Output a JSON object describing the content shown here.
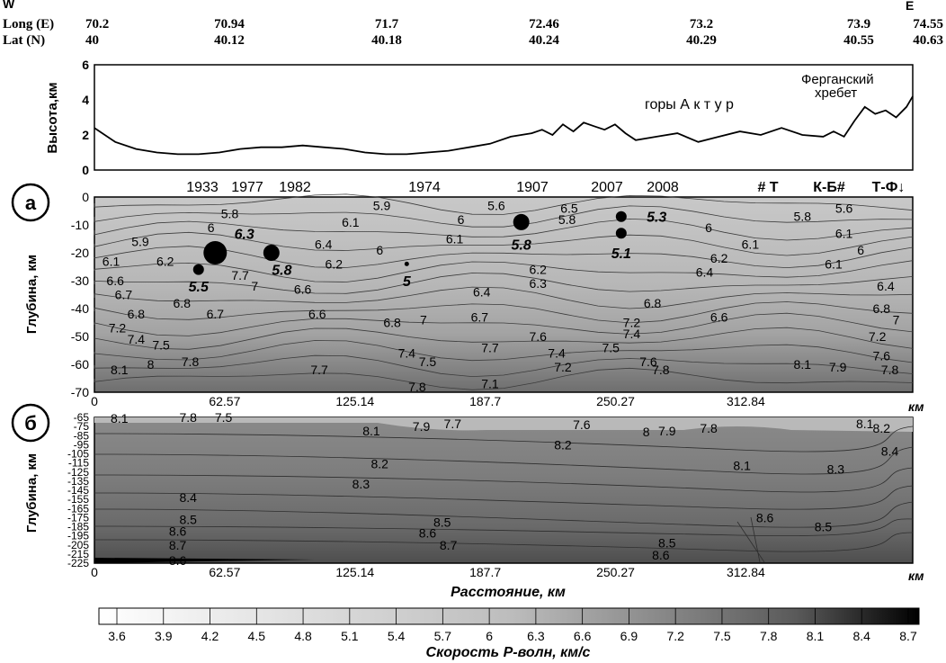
{
  "header": {
    "west": "W",
    "east": "E",
    "long_label": "Long (E)",
    "lat_label": "Lat (N)",
    "longs": [
      "70.2",
      "70.94",
      "71.7",
      "72.46",
      "73.2",
      "73.9",
      "74.55"
    ],
    "lats": [
      "40",
      "40.12",
      "40.18",
      "40.24",
      "40.29",
      "40.55",
      "40.63"
    ]
  },
  "chart_data": [
    {
      "type": "line",
      "ylabel": "Высота,км",
      "ylim": [
        0,
        6
      ],
      "yticks": [
        "0",
        "2",
        "4",
        "6"
      ],
      "annotations": [
        "горы   А к т у р",
        "Ферганский",
        "хребет"
      ],
      "series": [
        {
          "x": [
            0,
            10,
            20,
            30,
            40,
            50,
            60,
            70,
            80,
            90,
            100,
            110,
            120,
            130,
            140,
            150,
            160,
            170,
            180,
            190,
            200,
            210,
            215,
            220,
            225,
            230,
            235,
            240,
            245,
            250,
            255,
            260,
            270,
            280,
            290,
            300,
            310,
            320,
            330,
            340,
            350,
            355,
            360,
            365,
            370,
            375,
            380,
            385,
            390,
            393
          ],
          "y": [
            2.4,
            1.6,
            1.2,
            1.0,
            0.9,
            0.9,
            1.0,
            1.2,
            1.3,
            1.3,
            1.4,
            1.3,
            1.2,
            1.0,
            0.9,
            0.9,
            1.0,
            1.1,
            1.3,
            1.5,
            1.9,
            2.1,
            2.3,
            2.0,
            2.6,
            2.2,
            2.7,
            2.5,
            2.3,
            2.6,
            2.1,
            1.7,
            1.9,
            2.1,
            1.6,
            1.9,
            2.2,
            2.0,
            2.4,
            2.0,
            1.9,
            2.2,
            1.9,
            2.8,
            3.6,
            3.2,
            3.4,
            3.0,
            3.6,
            4.2
          ]
        }
      ]
    },
    {
      "type": "heatmap",
      "panel_label": "а",
      "ylabel": "Глубина, км",
      "xlabel": "км",
      "ylim": [
        -70,
        0
      ],
      "yticks": [
        "0",
        "-10",
        "-20",
        "-30",
        "-40",
        "-50",
        "-60",
        "-70"
      ],
      "xticks": [
        "0",
        "62.57",
        "125.14",
        "187.7",
        "250.27",
        "312.84"
      ],
      "xvals": [
        0,
        62.57,
        125.14,
        187.7,
        250.27,
        312.84
      ],
      "xmax": 393,
      "top_labels": [
        "1933",
        "1977",
        "1982",
        "1974",
        "1907",
        "2007",
        "2008",
        "# Т",
        "К-Б#",
        "Т-Ф↓"
      ],
      "earthquakes": [
        {
          "x": 58,
          "depth": -20,
          "r": 13
        },
        {
          "x": 85,
          "depth": -20,
          "r": 9
        },
        {
          "x": 50,
          "depth": -26,
          "r": 6
        },
        {
          "x": 150,
          "depth": -24,
          "r": 2.5
        },
        {
          "x": 205,
          "depth": -9,
          "r": 9
        },
        {
          "x": 253,
          "depth": -7,
          "r": 6
        },
        {
          "x": 253,
          "depth": -13,
          "r": 6
        }
      ],
      "magnitudes": [
        {
          "text": "6.3",
          "x": 72,
          "depth": -13
        },
        {
          "text": "5.8",
          "x": 90,
          "depth": -26
        },
        {
          "text": "5.5",
          "x": 50,
          "depth": -32
        },
        {
          "text": "5",
          "x": 150,
          "depth": -30
        },
        {
          "text": "5.8",
          "x": 205,
          "depth": -17
        },
        {
          "text": "5.3",
          "x": 270,
          "depth": -7
        },
        {
          "text": "5.1",
          "x": 253,
          "depth": -20
        }
      ],
      "contour_labels": [
        {
          "text": "5.8",
          "x": 65,
          "depth": -6
        },
        {
          "text": "5.9",
          "x": 138,
          "depth": -3
        },
        {
          "text": "5.6",
          "x": 193,
          "depth": -3
        },
        {
          "text": "6.5",
          "x": 228,
          "depth": -4
        },
        {
          "text": "5.8",
          "x": 227,
          "depth": -8
        },
        {
          "text": "6",
          "x": 176,
          "depth": -8
        },
        {
          "text": "6.1",
          "x": 123,
          "depth": -9
        },
        {
          "text": "6.1",
          "x": 173,
          "depth": -15
        },
        {
          "text": "5.9",
          "x": 22,
          "depth": -16
        },
        {
          "text": "6",
          "x": 56,
          "depth": -11
        },
        {
          "text": "6",
          "x": 137,
          "depth": -19
        },
        {
          "text": "6.4",
          "x": 110,
          "depth": -17
        },
        {
          "text": "6.2",
          "x": 34,
          "depth": -23
        },
        {
          "text": "6.1",
          "x": 8,
          "depth": -23
        },
        {
          "text": "6.6",
          "x": 10,
          "depth": -30
        },
        {
          "text": "6.7",
          "x": 14,
          "depth": -35
        },
        {
          "text": "7.7",
          "x": 70,
          "depth": -28
        },
        {
          "text": "7",
          "x": 77,
          "depth": -32
        },
        {
          "text": "6.8",
          "x": 42,
          "depth": -38
        },
        {
          "text": "6.8",
          "x": 20,
          "depth": -42
        },
        {
          "text": "6.7",
          "x": 58,
          "depth": -42
        },
        {
          "text": "6.6",
          "x": 107,
          "depth": -42
        },
        {
          "text": "6.6",
          "x": 100,
          "depth": -33
        },
        {
          "text": "6.2",
          "x": 115,
          "depth": -24
        },
        {
          "text": "6.2",
          "x": 213,
          "depth": -26
        },
        {
          "text": "6.3",
          "x": 213,
          "depth": -31
        },
        {
          "text": "6.4",
          "x": 186,
          "depth": -34
        },
        {
          "text": "6.2",
          "x": 300,
          "depth": -22
        },
        {
          "text": "6.4",
          "x": 293,
          "depth": -27
        },
        {
          "text": "6",
          "x": 295,
          "depth": -11
        },
        {
          "text": "6.1",
          "x": 315,
          "depth": -17
        },
        {
          "text": "5.8",
          "x": 340,
          "depth": -7
        },
        {
          "text": "5.6",
          "x": 360,
          "depth": -4
        },
        {
          "text": "6.1",
          "x": 360,
          "depth": -13
        },
        {
          "text": "6",
          "x": 368,
          "depth": -19
        },
        {
          "text": "6.1",
          "x": 355,
          "depth": -24
        },
        {
          "text": "6.4",
          "x": 380,
          "depth": -32
        },
        {
          "text": "6.8",
          "x": 268,
          "depth": -38
        },
        {
          "text": "6.6",
          "x": 300,
          "depth": -43
        },
        {
          "text": "6.8",
          "x": 378,
          "depth": -40
        },
        {
          "text": "7",
          "x": 385,
          "depth": -44
        },
        {
          "text": "7.2",
          "x": 376,
          "depth": -50
        },
        {
          "text": "6.7",
          "x": 185,
          "depth": -43
        },
        {
          "text": "6.8",
          "x": 143,
          "depth": -45
        },
        {
          "text": "7",
          "x": 158,
          "depth": -44
        },
        {
          "text": "7.2",
          "x": 11,
          "depth": -47
        },
        {
          "text": "7.4",
          "x": 20,
          "depth": -51
        },
        {
          "text": "7.5",
          "x": 32,
          "depth": -53
        },
        {
          "text": "7.8",
          "x": 46,
          "depth": -59
        },
        {
          "text": "8",
          "x": 27,
          "depth": -60
        },
        {
          "text": "8.1",
          "x": 12,
          "depth": -62
        },
        {
          "text": "7.7",
          "x": 108,
          "depth": -62
        },
        {
          "text": "7.4",
          "x": 150,
          "depth": -56
        },
        {
          "text": "7.5",
          "x": 160,
          "depth": -59
        },
        {
          "text": "7.8",
          "x": 155,
          "depth": -68
        },
        {
          "text": "7.7",
          "x": 190,
          "depth": -54
        },
        {
          "text": "7.6",
          "x": 213,
          "depth": -50
        },
        {
          "text": "7.4",
          "x": 222,
          "depth": -56
        },
        {
          "text": "7.2",
          "x": 225,
          "depth": -61
        },
        {
          "text": "7.5",
          "x": 248,
          "depth": -54
        },
        {
          "text": "7.2",
          "x": 258,
          "depth": -45
        },
        {
          "text": "7.4",
          "x": 258,
          "depth": -49
        },
        {
          "text": "7.1",
          "x": 190,
          "depth": -67
        },
        {
          "text": "7.6",
          "x": 266,
          "depth": -59
        },
        {
          "text": "7.8",
          "x": 272,
          "depth": -62
        },
        {
          "text": "8.1",
          "x": 340,
          "depth": -60
        },
        {
          "text": "7.9",
          "x": 357,
          "depth": -61
        },
        {
          "text": "7.6",
          "x": 378,
          "depth": -57
        },
        {
          "text": "7.8",
          "x": 382,
          "depth": -62
        }
      ]
    },
    {
      "type": "heatmap",
      "panel_label": "б",
      "ylabel": "Глубина, км",
      "xlabel": "км",
      "title_bottom": "Расстояние, км",
      "ylim": [
        -225,
        -65
      ],
      "yticks": [
        "-65",
        "-75",
        "-85",
        "-95",
        "-105",
        "-115",
        "-125",
        "-135",
        "-145",
        "-155",
        "-165",
        "-175",
        "-185",
        "-195",
        "-205",
        "-215",
        "-225"
      ],
      "xticks": [
        "0",
        "62.57",
        "125.14",
        "187.7",
        "250.27",
        "312.84"
      ],
      "xvals": [
        0,
        62.57,
        125.14,
        187.7,
        250.27,
        312.84
      ],
      "xmax": 393,
      "contour_labels": [
        {
          "text": "8.1",
          "x": 12,
          "depth": -66
        },
        {
          "text": "7.8",
          "x": 45,
          "depth": -65
        },
        {
          "text": "7.5",
          "x": 62,
          "depth": -65
        },
        {
          "text": "8.1",
          "x": 133,
          "depth": -80
        },
        {
          "text": "7.9",
          "x": 157,
          "depth": -75
        },
        {
          "text": "7.7",
          "x": 172,
          "depth": -72
        },
        {
          "text": "7.6",
          "x": 234,
          "depth": -73
        },
        {
          "text": "8",
          "x": 265,
          "depth": -81
        },
        {
          "text": "7.9",
          "x": 275,
          "depth": -80
        },
        {
          "text": "7.8",
          "x": 295,
          "depth": -77
        },
        {
          "text": "8.2",
          "x": 225,
          "depth": -95
        },
        {
          "text": "8.2",
          "x": 137,
          "depth": -116
        },
        {
          "text": "8.1",
          "x": 311,
          "depth": -118
        },
        {
          "text": "8.3",
          "x": 128,
          "depth": -138
        },
        {
          "text": "8.4",
          "x": 45,
          "depth": -153
        },
        {
          "text": "8.5",
          "x": 45,
          "depth": -177
        },
        {
          "text": "8.5",
          "x": 167,
          "depth": -180
        },
        {
          "text": "8.6",
          "x": 40,
          "depth": -190
        },
        {
          "text": "8.6",
          "x": 160,
          "depth": -192
        },
        {
          "text": "8.7",
          "x": 40,
          "depth": -205
        },
        {
          "text": "8.7",
          "x": 170,
          "depth": -205
        },
        {
          "text": "8.5",
          "x": 275,
          "depth": -203
        },
        {
          "text": "8.6",
          "x": 272,
          "depth": -216
        },
        {
          "text": "8.6",
          "x": 322,
          "depth": -175
        },
        {
          "text": "8.5",
          "x": 350,
          "depth": -185
        },
        {
          "text": "8.3",
          "x": 356,
          "depth": -122
        },
        {
          "text": "8.4",
          "x": 382,
          "depth": -102
        },
        {
          "text": "8.1",
          "x": 370,
          "depth": -72
        },
        {
          "text": "8.2",
          "x": 378,
          "depth": -77
        },
        {
          "text": "8.6",
          "x": 40,
          "depth": -222
        }
      ]
    },
    {
      "type": "table",
      "caption": "Скорость Р-волн, км/с",
      "ticks": [
        "3.6",
        "3.9",
        "4.2",
        "4.5",
        "4.8",
        "5.1",
        "5.4",
        "5.7",
        "6",
        "6.3",
        "6.6",
        "6.9",
        "7.2",
        "7.5",
        "7.8",
        "8.1",
        "8.4",
        "8.7"
      ]
    }
  ]
}
